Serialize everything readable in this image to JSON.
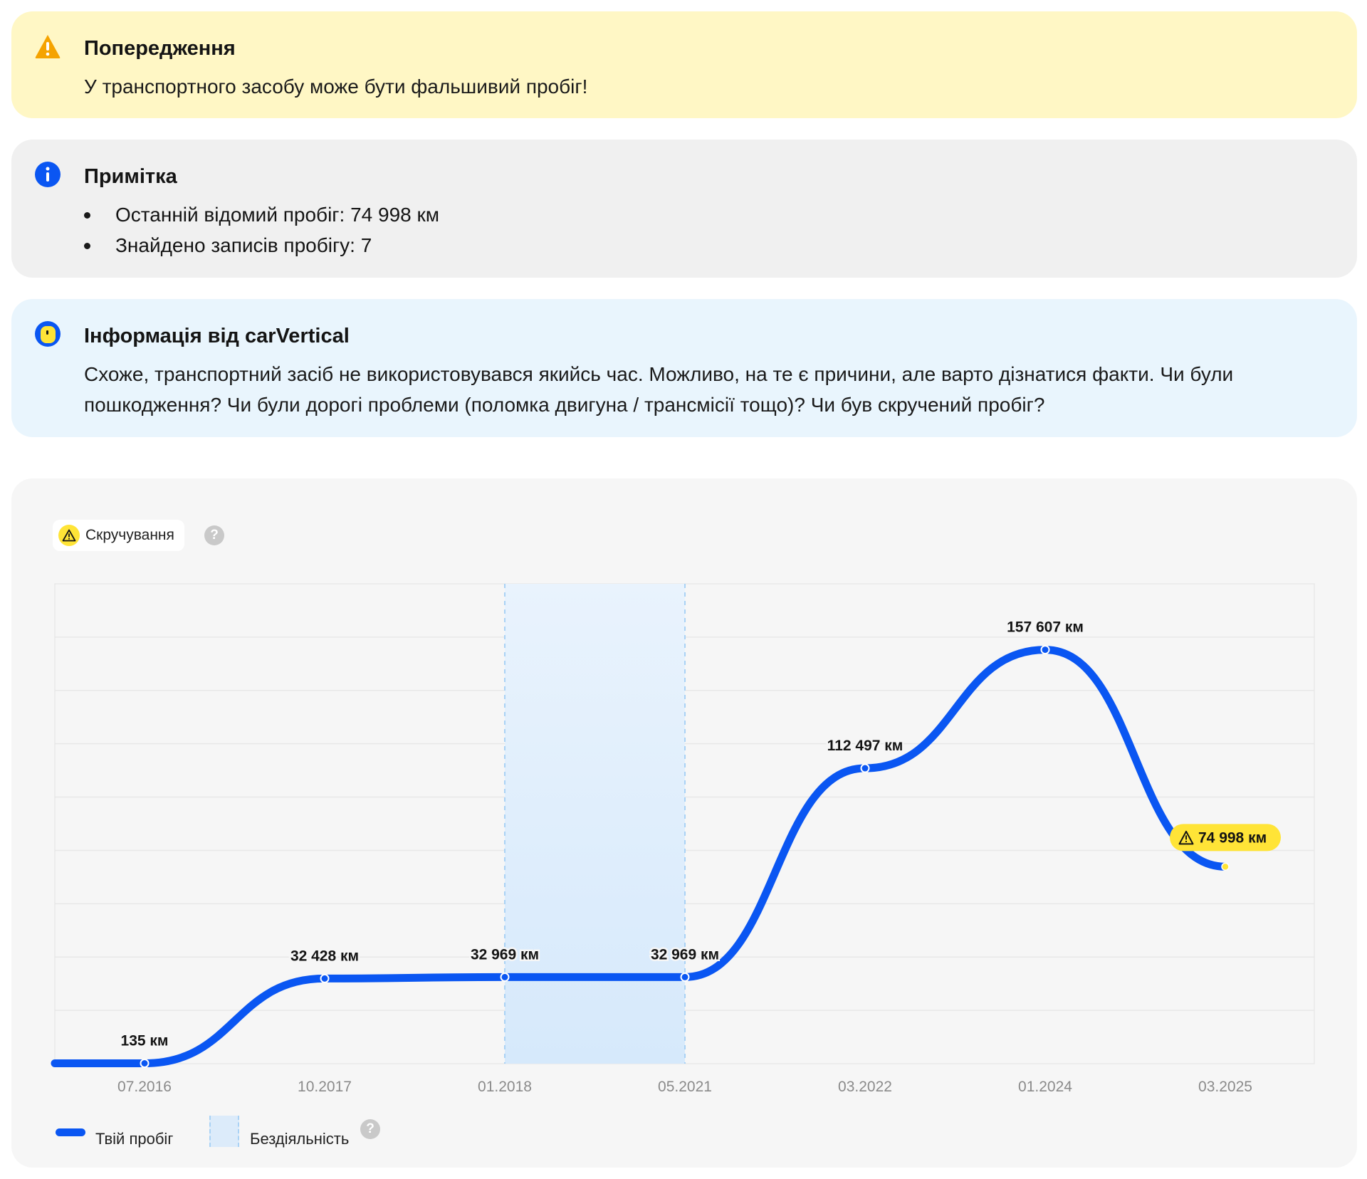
{
  "warning": {
    "icon": "warning-triangle-icon",
    "title": "Попередження",
    "text": "У транспортного засобу може бути фальшивий пробіг!"
  },
  "note": {
    "icon": "info-icon",
    "title": "Примітка",
    "items": [
      "Останній відомий пробіг: 74 998 км",
      "Знайдено записів пробігу: 7"
    ]
  },
  "info": {
    "icon": "carvertical-logo-icon",
    "title": "Інформація від carVertical",
    "text": "Схоже, транспортний засіб не використовувався якийсь час. Можливо, на те є причини, але варто дізнатися факти. Чи були пошкодження? Чи були дорогі проблеми (поломка двигуна / трансмісії тощо)? Чи був скручений пробіг?"
  },
  "chart_filter": {
    "label": "Скручування",
    "icon": "warning-triangle-icon",
    "help_icon": "question-icon"
  },
  "chart_data": {
    "type": "line",
    "x": [
      "07.2016",
      "10.2017",
      "01.2018",
      "05.2021",
      "03.2022",
      "01.2024",
      "03.2025"
    ],
    "series": [
      {
        "name": "Твій пробіг",
        "values": [
          135,
          32428,
          32969,
          32969,
          112497,
          157607,
          74998
        ],
        "labels": [
          "135 км",
          "32 428 км",
          "32 969 км",
          "32 969 км",
          "112 497 км",
          "157 607 км",
          "74 998 км"
        ]
      }
    ],
    "ylim": [
      0,
      180000
    ],
    "grid": true,
    "highlight": {
      "from": "01.2018",
      "to": "05.2021",
      "name": "Бездіяльність"
    },
    "flagged_point": {
      "x": "03.2025",
      "label": "74 998 км",
      "type": "rollback"
    },
    "colors": {
      "line": "#0a56f2",
      "idle": "#dcebfa",
      "flag": "#ffe437"
    }
  },
  "legend": {
    "mileage_label": "Твій пробіг",
    "idle_label": "Бездіяльність"
  }
}
